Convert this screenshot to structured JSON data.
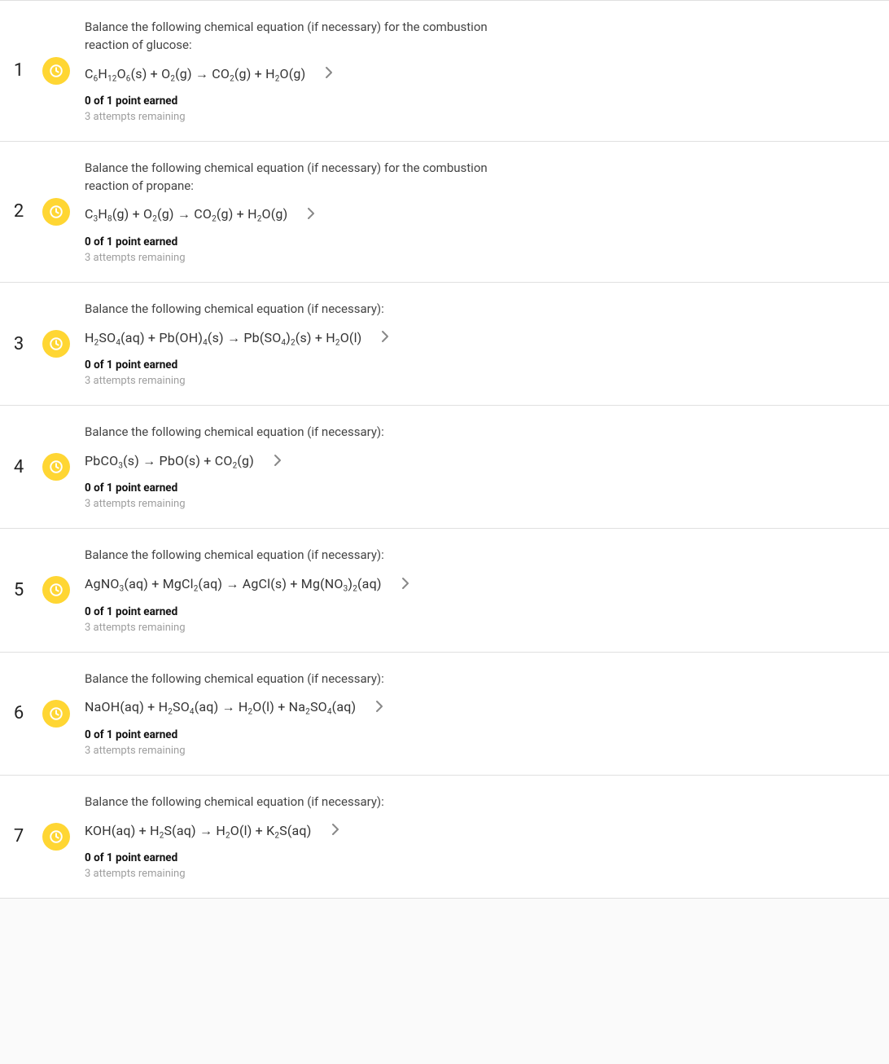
{
  "colors": {
    "badge_bg": "#ffd633",
    "badge_icon": "#ffffff",
    "row_bg": "#ffffff",
    "page_bg": "#fafafa",
    "border": "#e0e0e0",
    "text_primary": "#333333",
    "text_muted": "#9e9e9e",
    "chevron": "#888888"
  },
  "questions": [
    {
      "number": "1",
      "prompt": "Balance the following chemical equation (if necessary) for the combustion reaction of glucose:",
      "equation_html": "C<sub>6</sub>H<sub>12</sub>O<sub>6</sub>(s) + O<sub>2</sub>(g) → CO<sub>2</sub>(g) + H<sub>2</sub>O(g)",
      "points": "0 of 1 point earned",
      "attempts": "3 attempts remaining"
    },
    {
      "number": "2",
      "prompt": "Balance the following chemical equation (if necessary) for the combustion reaction of propane:",
      "equation_html": "C<sub>3</sub>H<sub>8</sub>(g) + O<sub>2</sub>(g) → CO<sub>2</sub>(g) + H<sub>2</sub>O(g)",
      "points": "0 of 1 point earned",
      "attempts": "3 attempts remaining"
    },
    {
      "number": "3",
      "prompt": "Balance the following chemical equation (if necessary):",
      "equation_html": "H<sub>2</sub>SO<sub>4</sub>(aq) + Pb(OH)<sub>4</sub>(s) → Pb(SO<sub>4</sub>)<sub>2</sub>(s) + H<sub>2</sub>O(l)",
      "points": "0 of 1 point earned",
      "attempts": "3 attempts remaining"
    },
    {
      "number": "4",
      "prompt": "Balance the following chemical equation (if necessary):",
      "equation_html": "PbCO<sub>3</sub>(s) → PbO(s) + CO<sub>2</sub>(g)",
      "points": "0 of 1 point earned",
      "attempts": "3 attempts remaining"
    },
    {
      "number": "5",
      "prompt": "Balance the following chemical equation (if necessary):",
      "equation_html": "AgNO<sub>3</sub>(aq) + MgCl<sub>2</sub>(aq) → AgCl(s) + Mg(NO<sub>3</sub>)<sub>2</sub>(aq)",
      "points": "0 of 1 point earned",
      "attempts": "3 attempts remaining"
    },
    {
      "number": "6",
      "prompt": "Balance the following chemical equation (if necessary):",
      "equation_html": "NaOH(aq) + H<sub>2</sub>SO<sub>4</sub>(aq) → H<sub>2</sub>O(l) + Na<sub>2</sub>SO<sub>4</sub>(aq)",
      "points": "0 of 1 point earned",
      "attempts": "3 attempts remaining"
    },
    {
      "number": "7",
      "prompt": "Balance the following chemical equation (if necessary):",
      "equation_html": "KOH(aq) + H<sub>2</sub>S(aq) → H<sub>2</sub>O(l) + K<sub>2</sub>S(aq)",
      "points": "0 of 1 point earned",
      "attempts": "3 attempts remaining"
    }
  ]
}
